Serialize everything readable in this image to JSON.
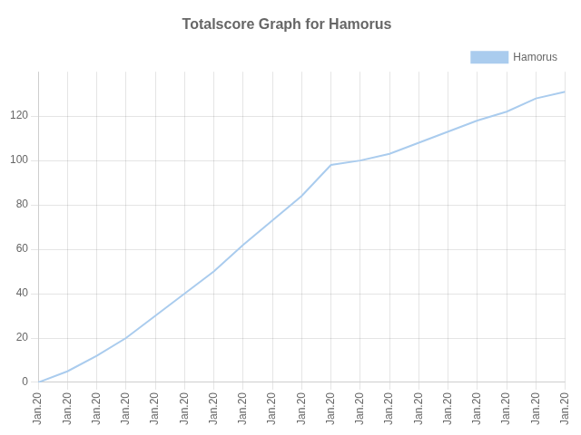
{
  "chart_data": {
    "type": "line",
    "title": "Totalscore Graph for Hamorus",
    "x": [
      0,
      1,
      2,
      3,
      4,
      5,
      6,
      7,
      8,
      9,
      10,
      11,
      12,
      13,
      14,
      15,
      16,
      17,
      18
    ],
    "series": [
      {
        "name": "Hamorus",
        "color": "#aaccee",
        "values": [
          0,
          5,
          12,
          20,
          30,
          40,
          50,
          62,
          73,
          84,
          98,
          100,
          103,
          108,
          113,
          118,
          122,
          128,
          131
        ]
      }
    ],
    "xlim": [
      0,
      18
    ],
    "xticks": [
      {
        "value": 0,
        "label": "Jan.20"
      },
      {
        "value": 1,
        "label": "Jan.20"
      },
      {
        "value": 2,
        "label": "Jan.20"
      },
      {
        "value": 3,
        "label": "Jan.20"
      },
      {
        "value": 4,
        "label": "Jan.20"
      },
      {
        "value": 5,
        "label": "Jan.20"
      },
      {
        "value": 6,
        "label": "Jan.20"
      },
      {
        "value": 7,
        "label": "Jan.20"
      },
      {
        "value": 8,
        "label": "Jan.20"
      },
      {
        "value": 9,
        "label": "Jan.20"
      },
      {
        "value": 10,
        "label": "Jan.20"
      },
      {
        "value": 11,
        "label": "Jan.20"
      },
      {
        "value": 12,
        "label": "Jan.20"
      },
      {
        "value": 13,
        "label": "Jan.20"
      },
      {
        "value": 14,
        "label": "Jan.20"
      },
      {
        "value": 15,
        "label": "Jan.20"
      },
      {
        "value": 16,
        "label": "Jan.20"
      },
      {
        "value": 17,
        "label": "Jan.20"
      },
      {
        "value": 18,
        "label": "Jan.20"
      }
    ],
    "ylim": [
      0,
      140
    ],
    "yticks": [
      0,
      20,
      40,
      60,
      80,
      100,
      120
    ],
    "grid": true,
    "legend": "upper right"
  }
}
